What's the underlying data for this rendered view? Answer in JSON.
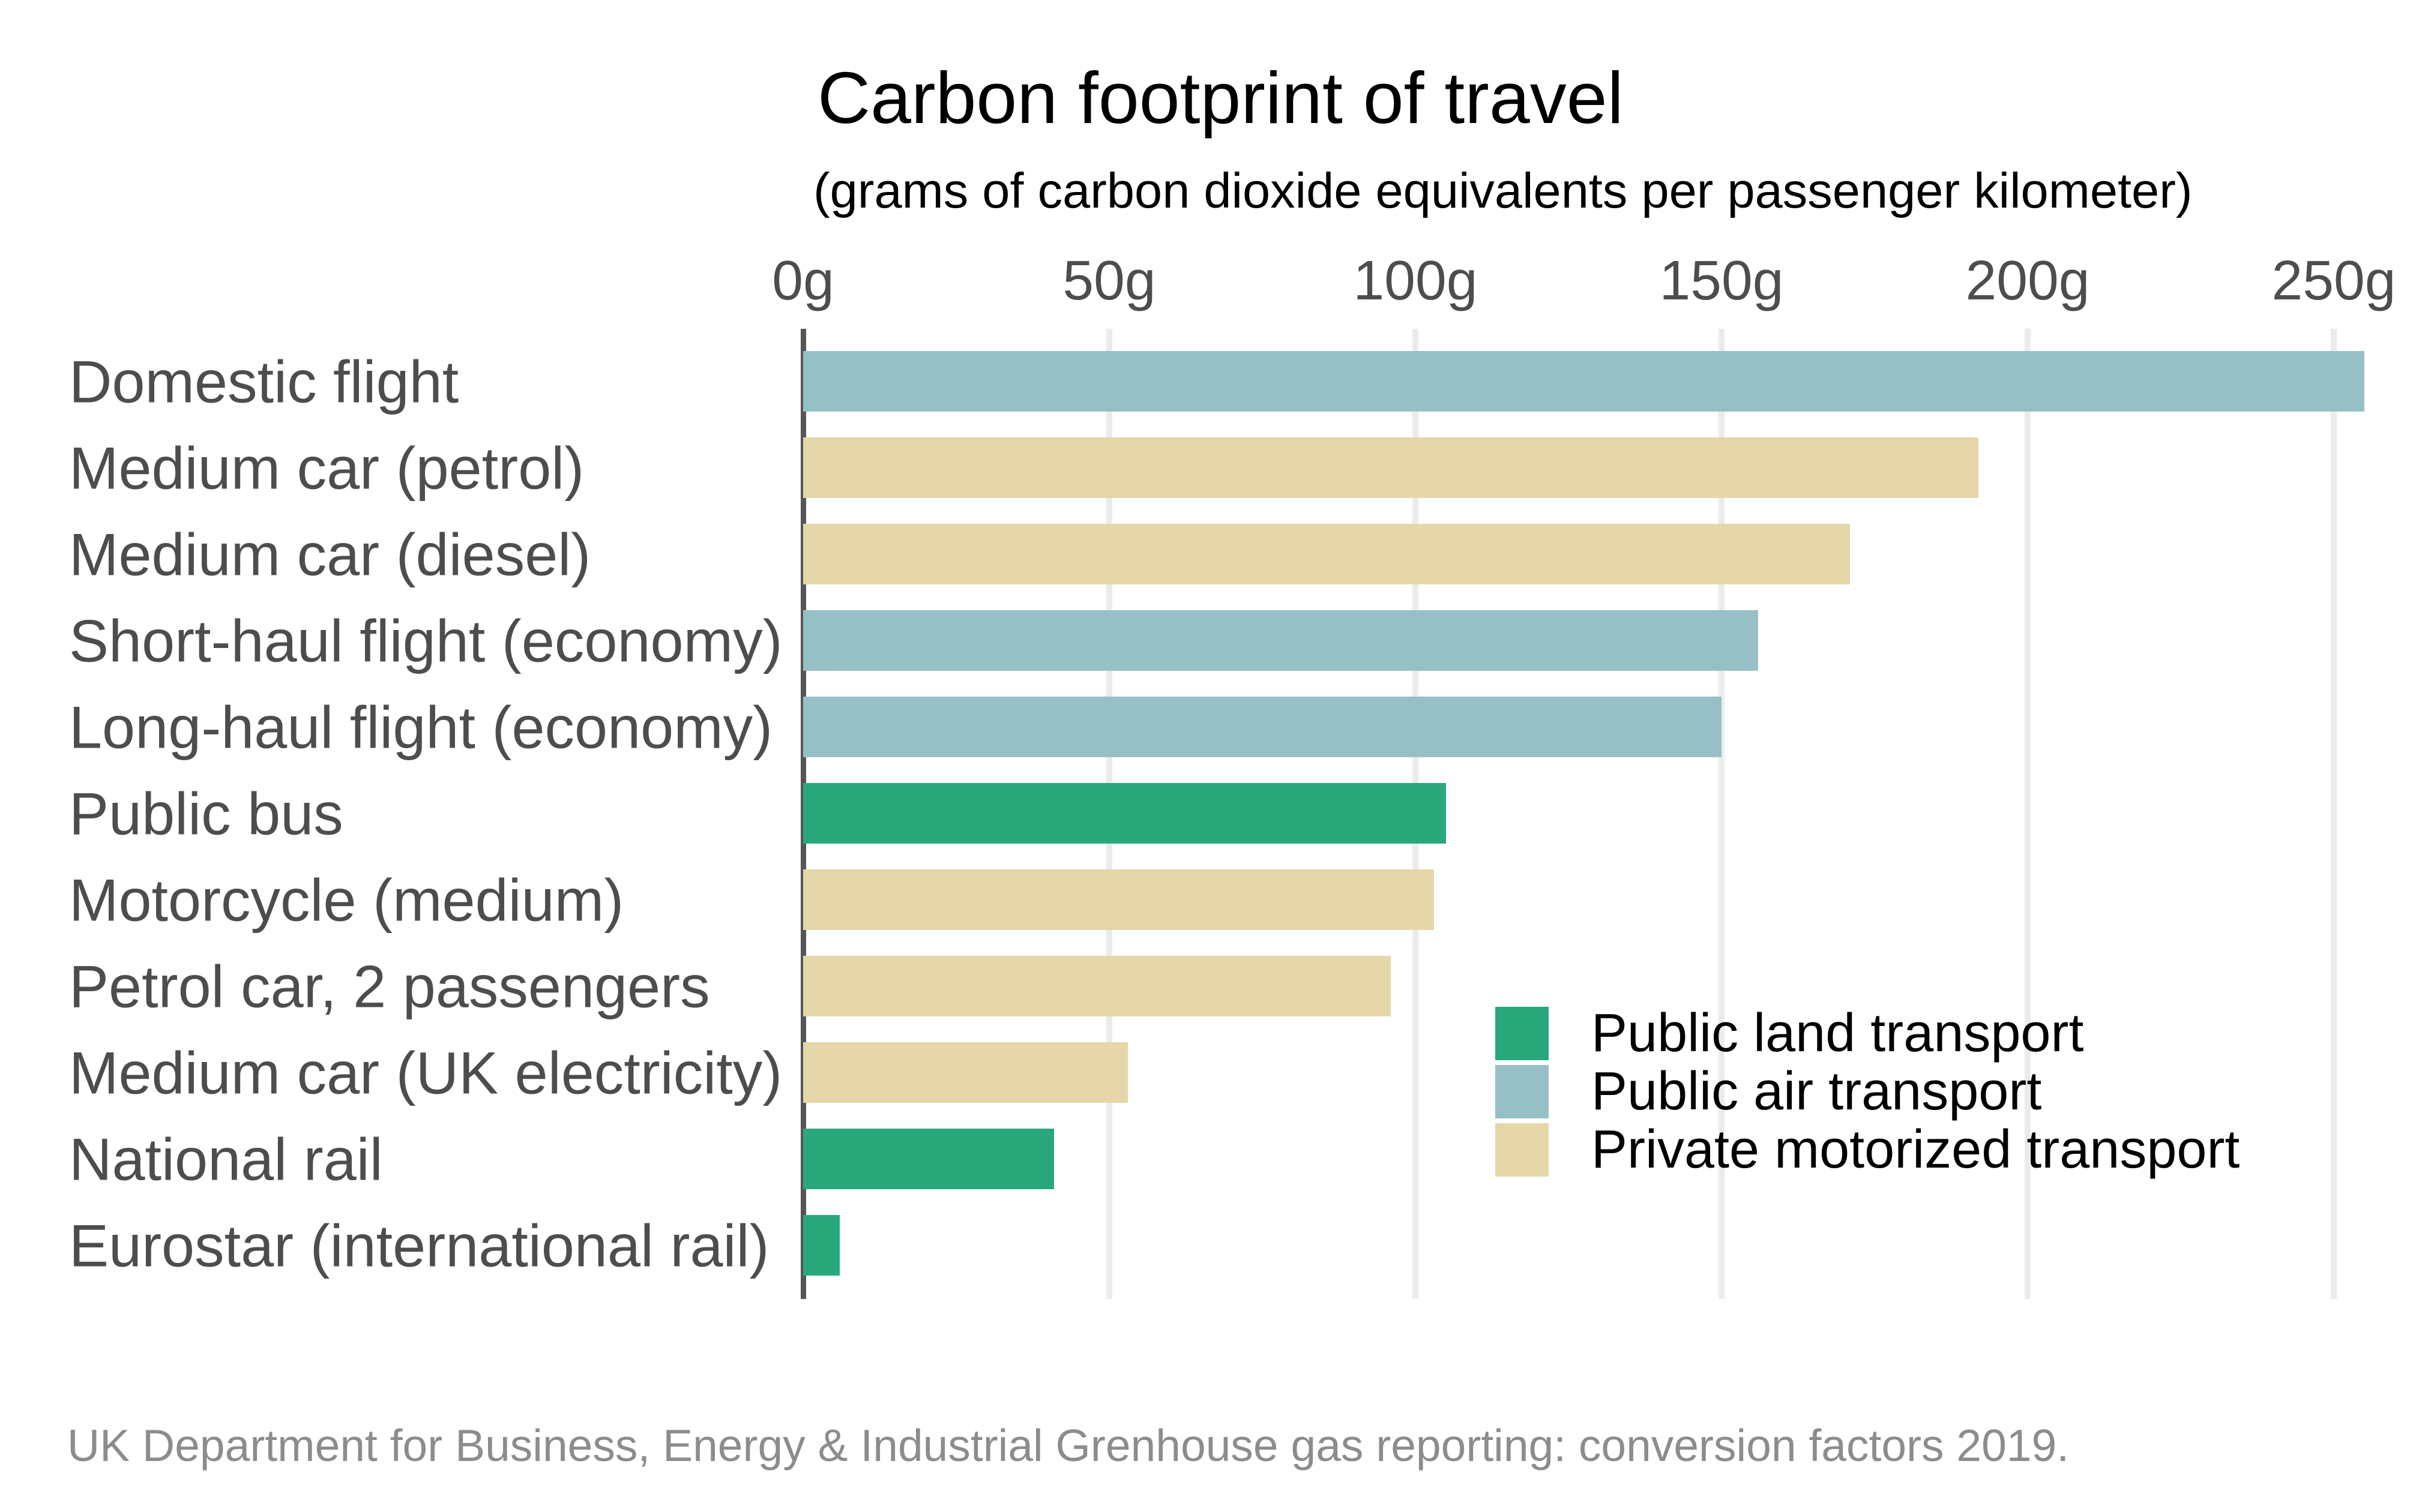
{
  "chart_data": {
    "type": "bar",
    "orientation": "horizontal",
    "title": "Carbon footprint of travel",
    "subtitle": "(grams of carbon dioxide equivalents per passenger kilometer)",
    "x_tick_values": [
      0,
      50,
      100,
      150,
      200,
      250
    ],
    "x_tick_labels": [
      "0g",
      "50g",
      "100g",
      "150g",
      "200g",
      "250g"
    ],
    "xlim": [
      0,
      260
    ],
    "grid": true,
    "legend_position": "inside-bottom-right",
    "categories": [
      "Domestic flight",
      "Medium car (petrol)",
      "Medium car (diesel)",
      "Short-haul flight (economy)",
      "Long-haul flight (economy)",
      "Public bus",
      "Motorcycle (medium)",
      "Petrol car, 2 passengers",
      "Medium car (UK electricity)",
      "National rail",
      "Eurostar (international rail)"
    ],
    "values": [
      255,
      192,
      171,
      156,
      150,
      105,
      103,
      96,
      53,
      41,
      6
    ],
    "bar_groups": [
      "air",
      "private",
      "private",
      "air",
      "air",
      "land",
      "private",
      "private",
      "private",
      "land",
      "land"
    ],
    "legend": [
      {
        "id": "land",
        "label": "Public land transport",
        "color": "#29a87c"
      },
      {
        "id": "air",
        "label": "Public air transport",
        "color": "#96c0c6"
      },
      {
        "id": "private",
        "label": "Private motorized transport",
        "color": "#e5d7a9"
      }
    ],
    "source": "UK Department for Business, Energy & Industrial Grenhouse gas reporting: conversion factors 2019."
  },
  "colors": {
    "axis_line": "#565656",
    "gridline": "#ebebeb",
    "tick_label": "#4d4d4d",
    "category_label": "#4d4d4d",
    "title": "#000000",
    "legend_label": "#000000",
    "source": "#8c8c8c"
  }
}
